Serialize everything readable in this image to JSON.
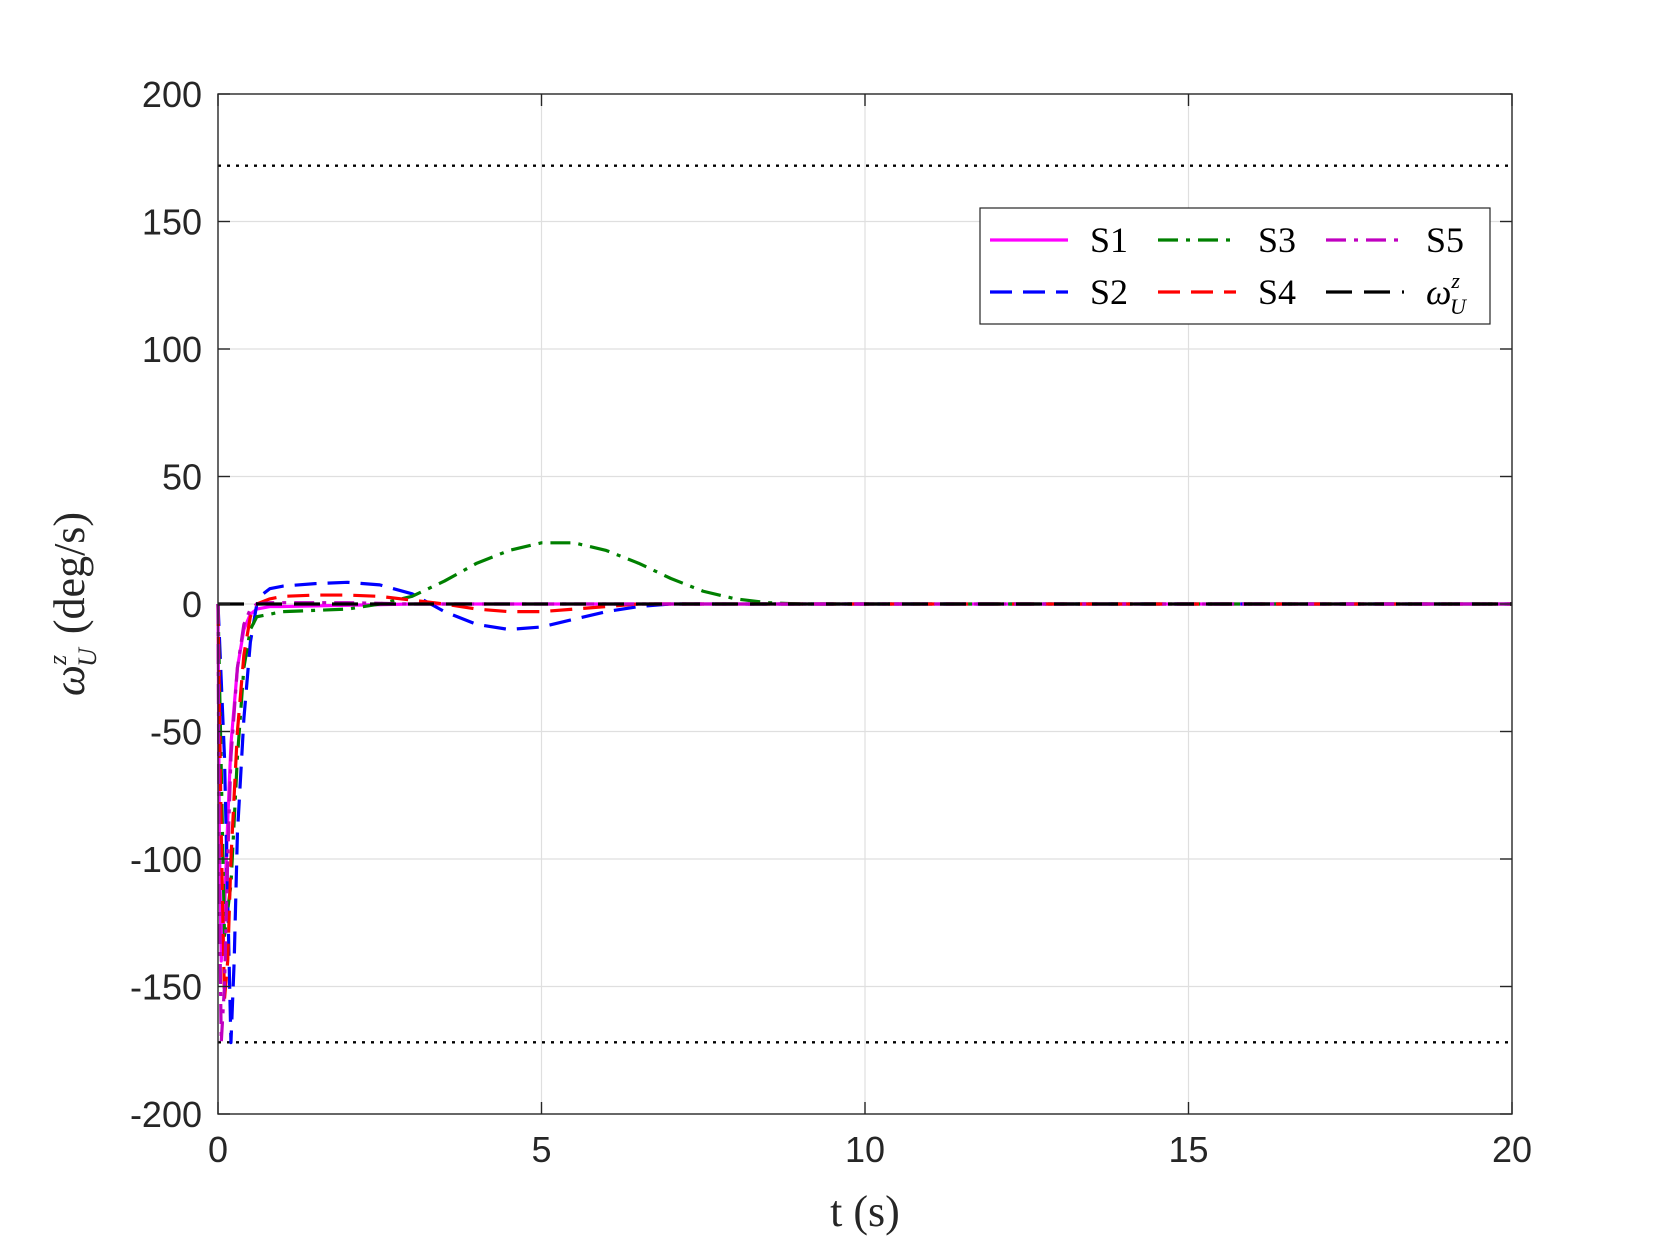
{
  "chart_data": {
    "type": "line",
    "title": "",
    "xlabel": "t (s)",
    "ylabel_symbol": "ω",
    "ylabel_sup": "z",
    "ylabel_sub": "U",
    "ylabel_unit": "(deg/s)",
    "xlim": [
      0,
      20
    ],
    "ylim": [
      -200,
      200
    ],
    "xticks": [
      0,
      5,
      10,
      15,
      20
    ],
    "yticks": [
      -200,
      -150,
      -100,
      -50,
      0,
      50,
      100,
      150,
      200
    ],
    "grid": true,
    "legend_position": "top-right",
    "bounds": {
      "values": [
        171.9,
        -171.9
      ],
      "color": "#000000",
      "style": "dotted"
    },
    "series": [
      {
        "name": "S1",
        "color": "#ff00ff",
        "style": "solid",
        "x": [
          0,
          0.02,
          0.05,
          0.1,
          0.15,
          0.2,
          0.3,
          0.4,
          0.5,
          0.6,
          0.8,
          1.0,
          2.0,
          3.0,
          4.0,
          6.0,
          8.0,
          10.0,
          15.0,
          20.0
        ],
        "y": [
          0,
          -90,
          -140,
          -120,
          -85,
          -55,
          -25,
          -10,
          -4,
          -2,
          -1,
          -1,
          -0.5,
          0,
          0,
          0,
          0,
          0,
          0,
          0
        ]
      },
      {
        "name": "S2",
        "color": "#0000ff",
        "style": "dashed",
        "x": [
          0,
          0.1,
          0.2,
          0.25,
          0.3,
          0.4,
          0.5,
          0.6,
          0.7,
          0.8,
          1.0,
          1.5,
          2.0,
          2.5,
          3.0,
          3.5,
          4.0,
          4.5,
          5.0,
          5.5,
          6.0,
          6.5,
          7.0,
          8.0,
          10.0,
          15.0,
          20.0
        ],
        "y": [
          0,
          -60,
          -172,
          -140,
          -90,
          -45,
          -15,
          0,
          4,
          6,
          7,
          8,
          8.5,
          7.5,
          4,
          -3,
          -8,
          -10,
          -9,
          -6,
          -3,
          -1,
          0,
          0,
          0,
          0,
          0
        ]
      },
      {
        "name": "S3",
        "color": "#008000",
        "style": "dashdot",
        "x": [
          0,
          0.1,
          0.2,
          0.3,
          0.4,
          0.5,
          0.6,
          0.8,
          1.0,
          2.0,
          2.5,
          3.0,
          3.5,
          4.0,
          4.5,
          5.0,
          5.5,
          6.0,
          6.5,
          7.0,
          7.5,
          8.0,
          8.5,
          9.0,
          9.5,
          10.0,
          15.0,
          20.0
        ],
        "y": [
          0,
          -130,
          -110,
          -60,
          -25,
          -10,
          -5,
          -4,
          -3,
          -2,
          0,
          3,
          9,
          16,
          21,
          24,
          24,
          21,
          16,
          10,
          5,
          2,
          0.5,
          0,
          0,
          0,
          0,
          0
        ]
      },
      {
        "name": "S4",
        "color": "#ff0000",
        "style": "dashed",
        "x": [
          0,
          0.05,
          0.1,
          0.15,
          0.2,
          0.3,
          0.4,
          0.5,
          0.6,
          0.8,
          1.0,
          1.5,
          2.0,
          2.5,
          3.0,
          3.5,
          4.0,
          4.5,
          5.0,
          5.5,
          6.0,
          6.5,
          7.0,
          8.0,
          10.0,
          15.0,
          20.0
        ],
        "y": [
          0,
          -90,
          -155,
          -140,
          -100,
          -50,
          -20,
          -5,
          0,
          2,
          3,
          3.5,
          3.5,
          3,
          1.5,
          0,
          -2,
          -3,
          -3,
          -2,
          -1,
          0,
          0,
          0,
          0,
          0,
          0
        ]
      },
      {
        "name": "S5",
        "color": "#c000c0",
        "style": "dashdot",
        "x": [
          0,
          0.02,
          0.05,
          0.1,
          0.15,
          0.2,
          0.3,
          0.4,
          0.5,
          0.6,
          0.8,
          1.0,
          2.0,
          3.0,
          4.0,
          6.0,
          8.0,
          10.0,
          15.0,
          20.0
        ],
        "y": [
          0,
          -110,
          -172,
          -150,
          -100,
          -60,
          -25,
          -8,
          -2,
          0,
          0.5,
          0.5,
          0.5,
          0,
          0,
          0,
          0,
          0,
          0,
          0
        ]
      },
      {
        "name": "ω",
        "name_sup": "z",
        "name_sub": "U",
        "color": "#000000",
        "style": "dashed-long",
        "x": [
          0,
          20
        ],
        "y": [
          0,
          0
        ]
      }
    ]
  }
}
